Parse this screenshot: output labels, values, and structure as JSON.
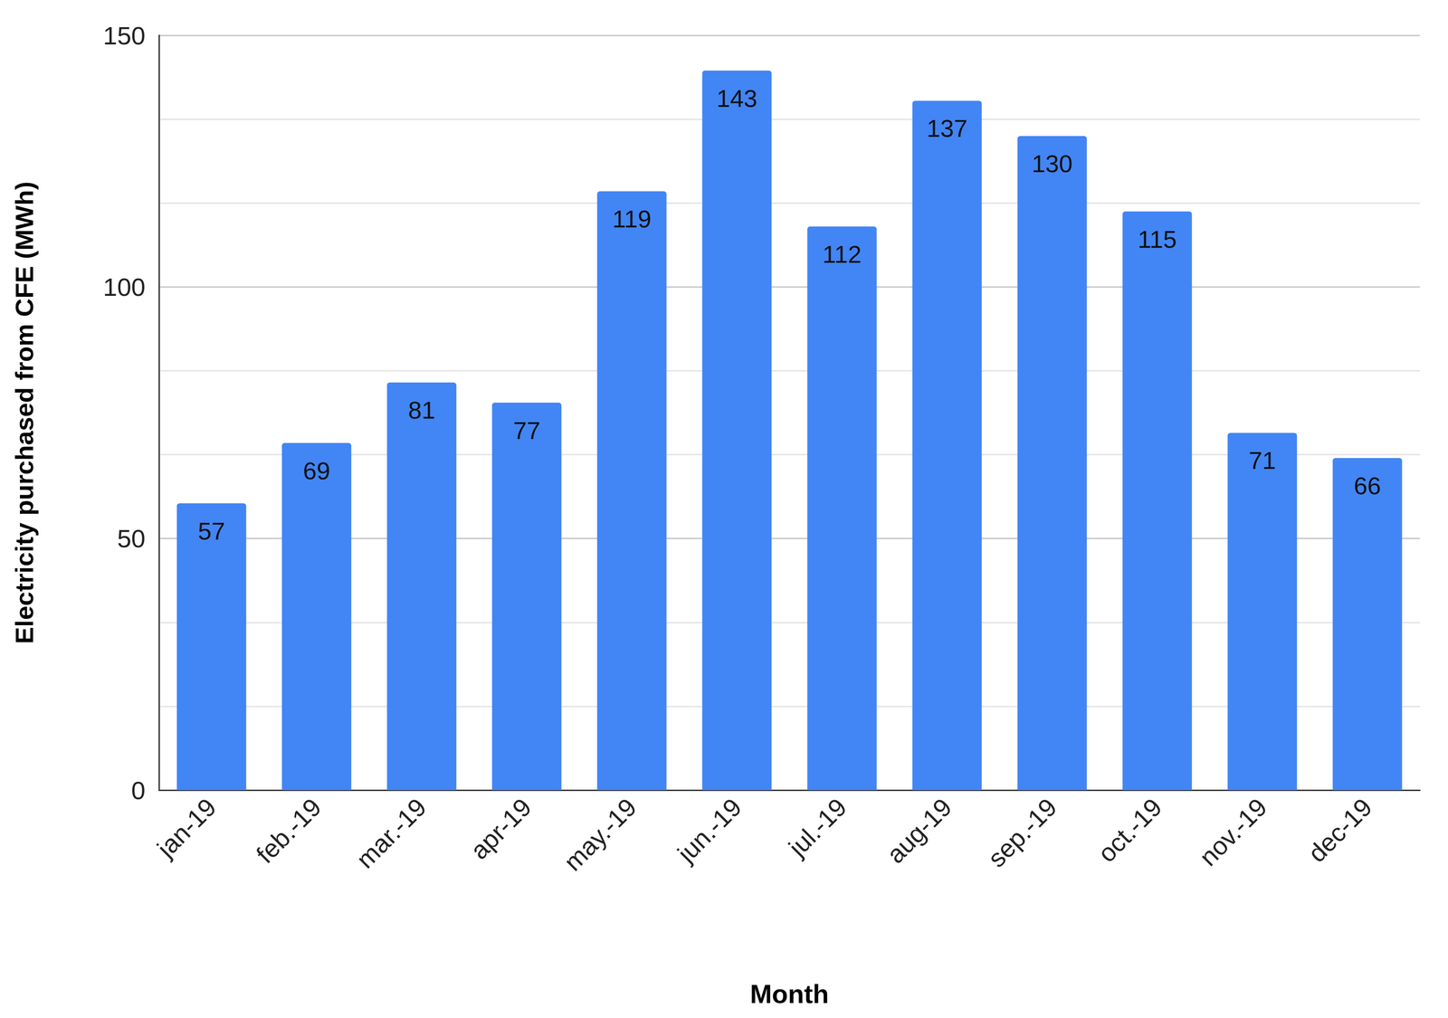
{
  "chart_data": {
    "type": "bar",
    "x_label": "Month",
    "y_label": "Electricity purchased from CFE (MWh)",
    "categories": [
      "jan-19",
      "feb.-19",
      "mar.-19",
      "apr-19",
      "may.-19",
      "jun.-19",
      "jul.-19",
      "aug-19",
      "sep.-19",
      "oct.-19",
      "nov.-19",
      "dec-19"
    ],
    "values": [
      57,
      69,
      81,
      77,
      119,
      143,
      112,
      137,
      130,
      115,
      71,
      66
    ],
    "color": "#4285f4",
    "ylim": [
      0,
      150
    ],
    "yticks": [
      0,
      50,
      100,
      150
    ],
    "grid": true,
    "data_labels": true
  }
}
